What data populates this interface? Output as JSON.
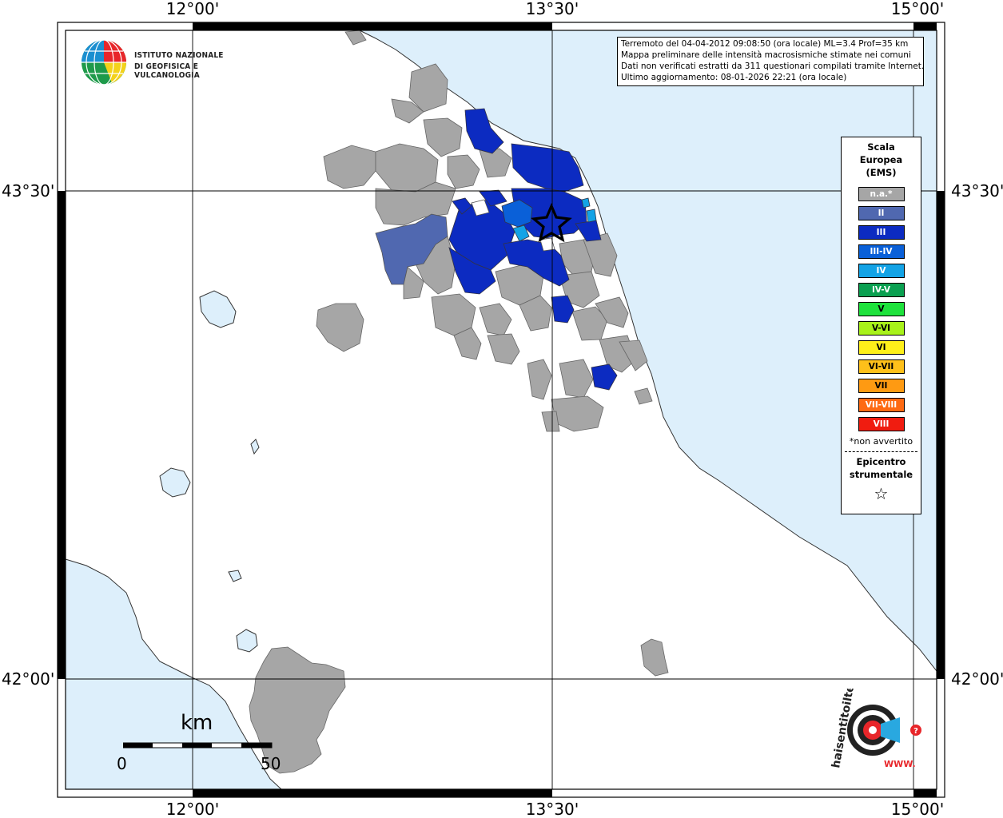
{
  "coords": {
    "top_lon": [
      "12°00'",
      "13°30'",
      "15°00'"
    ],
    "bottom_lon": [
      "12°00'",
      "13°30'",
      "15°00'"
    ],
    "left_lat": [
      "43°30'",
      "42°00'"
    ],
    "right_lat": [
      "43°30'",
      "42°00'"
    ]
  },
  "info": {
    "line1": "Terremoto del 04-04-2012 09:08:50 (ora locale) ML=3.4 Prof=35 km",
    "line2": "Mappa preliminare delle intensità macrosismiche stimate nei comuni",
    "line3": "Dati non verificati estratti da 311 questionari compilati tramite Internet.",
    "line4": "Ultimo aggiornamento: 08-01-2026 22:21 (ora locale)"
  },
  "logo": {
    "line1": "ISTITUTO NAZIONALE",
    "line2": "DI GEOFISICA E VULCANOLOGIA"
  },
  "legend": {
    "title1": "Scala",
    "title2": "Europea",
    "title3": "(EMS)",
    "items": [
      {
        "label": "n.a.*",
        "color": "#a6a6a6",
        "text_color": "#ffffff"
      },
      {
        "label": "II",
        "color": "#5068b0",
        "text_color": "#ffffff"
      },
      {
        "label": "III",
        "color": "#0c2bc1",
        "text_color": "#ffffff"
      },
      {
        "label": "III-IV",
        "color": "#0a60d8",
        "text_color": "#ffffff"
      },
      {
        "label": "IV",
        "color": "#13a3e6",
        "text_color": "#ffffff"
      },
      {
        "label": "IV-V",
        "color": "#0aa050",
        "text_color": "#ffffff"
      },
      {
        "label": "V",
        "color": "#1ee23c",
        "text_color": "#000000"
      },
      {
        "label": "V-VI",
        "color": "#a8f21a",
        "text_color": "#000000"
      },
      {
        "label": "VI",
        "color": "#fef01a",
        "text_color": "#000000"
      },
      {
        "label": "VI-VII",
        "color": "#fec01a",
        "text_color": "#000000"
      },
      {
        "label": "VII",
        "color": "#fe9a12",
        "text_color": "#000000"
      },
      {
        "label": "VII-VIII",
        "color": "#fe6a12",
        "text_color": "#ffffff"
      },
      {
        "label": "VIII",
        "color": "#f01c10",
        "text_color": "#ffffff"
      }
    ],
    "note": "*non avvertito",
    "epi1": "Epicentro",
    "epi2": "strumentale",
    "star": "☆"
  },
  "scale": {
    "unit": "km",
    "min": "0",
    "max": "50"
  },
  "hsit": {
    "text": "haisentitoilterremoto.it",
    "sub": "WWW."
  },
  "colors": {
    "sea": "#ddeffb",
    "land": "#ffffff",
    "na": "#a6a6a6",
    "ii": "#5068b0",
    "iii": "#0c2bc1",
    "iii_iv": "#0a60d8",
    "iv": "#13a3e6"
  }
}
